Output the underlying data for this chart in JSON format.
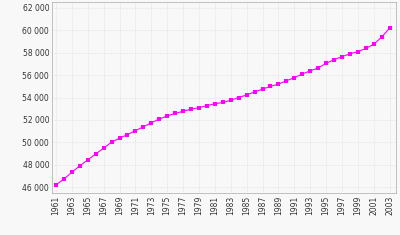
{
  "years": [
    1961,
    1962,
    1963,
    1964,
    1965,
    1966,
    1967,
    1968,
    1969,
    1970,
    1971,
    1972,
    1973,
    1974,
    1975,
    1976,
    1977,
    1978,
    1979,
    1980,
    1981,
    1982,
    1983,
    1984,
    1985,
    1986,
    1987,
    1988,
    1989,
    1990,
    1991,
    1992,
    1993,
    1994,
    1995,
    1996,
    1997,
    1998,
    1999,
    2000,
    2001,
    2002,
    2003
  ],
  "population": [
    46200,
    46720,
    47320,
    47900,
    48430,
    48960,
    49480,
    50020,
    50370,
    50690,
    51040,
    51380,
    51750,
    52070,
    52350,
    52580,
    52770,
    52960,
    53100,
    53280,
    53440,
    53560,
    53750,
    54000,
    54230,
    54500,
    54750,
    55000,
    55200,
    55490,
    55780,
    56100,
    56380,
    56640,
    57050,
    57380,
    57650,
    57900,
    58100,
    58380,
    58760,
    59400,
    60200
  ],
  "line_color": "#FF00FF",
  "marker_color": "#FF00FF",
  "bg_color": "#f8f8f8",
  "grid_color": "#cccccc",
  "ytick_labels": [
    "46 000",
    "48 000",
    "50 000",
    "52 000",
    "54 000",
    "56 000",
    "58 000",
    "60 000",
    "62 000"
  ],
  "ytick_values": [
    46000,
    48000,
    50000,
    52000,
    54000,
    56000,
    58000,
    60000,
    62000
  ],
  "ylim": [
    45500,
    62500
  ],
  "xlim": [
    1960.5,
    2003.8
  ],
  "xtick_years": [
    1961,
    1963,
    1965,
    1967,
    1969,
    1971,
    1973,
    1975,
    1977,
    1979,
    1981,
    1983,
    1985,
    1987,
    1989,
    1991,
    1993,
    1995,
    1997,
    1999,
    2001,
    2003
  ]
}
